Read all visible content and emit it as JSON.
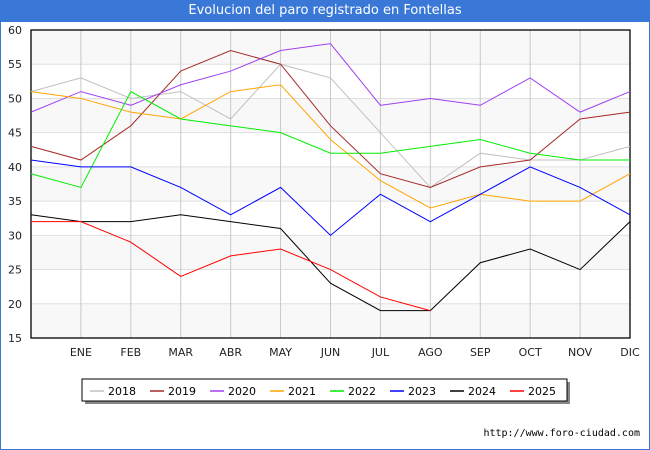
{
  "title": "Evolucion del paro registrado en Fontellas",
  "footer": "http://www.foro-ciudad.com",
  "chart_data": {
    "type": "line",
    "title": "Evolucion del paro registrado en Fontellas",
    "categories": [
      "",
      "ENE",
      "FEB",
      "MAR",
      "ABR",
      "MAY",
      "JUN",
      "JUL",
      "AGO",
      "SEP",
      "OCT",
      "NOV",
      "DIC"
    ],
    "ylim": [
      15,
      60
    ],
    "yticks": [
      15,
      20,
      25,
      30,
      35,
      40,
      45,
      50,
      55,
      60
    ],
    "grid": true,
    "legend_position": "bottom",
    "series": [
      {
        "name": "2018",
        "color": "#c0c0c0",
        "values": [
          51,
          53,
          50,
          51,
          47,
          55,
          53,
          45,
          37,
          42,
          41,
          41,
          43
        ]
      },
      {
        "name": "2019",
        "color": "#a52a2a",
        "values": [
          43,
          41,
          46,
          54,
          57,
          55,
          46,
          39,
          37,
          40,
          41,
          47,
          48
        ]
      },
      {
        "name": "2020",
        "color": "#a040f0",
        "values": [
          48,
          51,
          49,
          52,
          54,
          57,
          58,
          49,
          50,
          49,
          53,
          48,
          51
        ]
      },
      {
        "name": "2021",
        "color": "#ffa500",
        "values": [
          51,
          50,
          48,
          47,
          51,
          52,
          44,
          38,
          34,
          36,
          35,
          35,
          39
        ]
      },
      {
        "name": "2022",
        "color": "#00ee00",
        "values": [
          39,
          37,
          51,
          47,
          46,
          45,
          42,
          42,
          43,
          44,
          42,
          41,
          41
        ]
      },
      {
        "name": "2023",
        "color": "#0000ff",
        "values": [
          41,
          40,
          40,
          37,
          33,
          37,
          30,
          36,
          32,
          36,
          40,
          37,
          33
        ]
      },
      {
        "name": "2024",
        "color": "#000000",
        "values": [
          33,
          32,
          32,
          33,
          32,
          31,
          23,
          19,
          19,
          26,
          28,
          25,
          32
        ]
      },
      {
        "name": "2025",
        "color": "#ff0000",
        "values": [
          32,
          32,
          29,
          24,
          27,
          28,
          25,
          21,
          19,
          null,
          null,
          null,
          null
        ]
      }
    ]
  }
}
